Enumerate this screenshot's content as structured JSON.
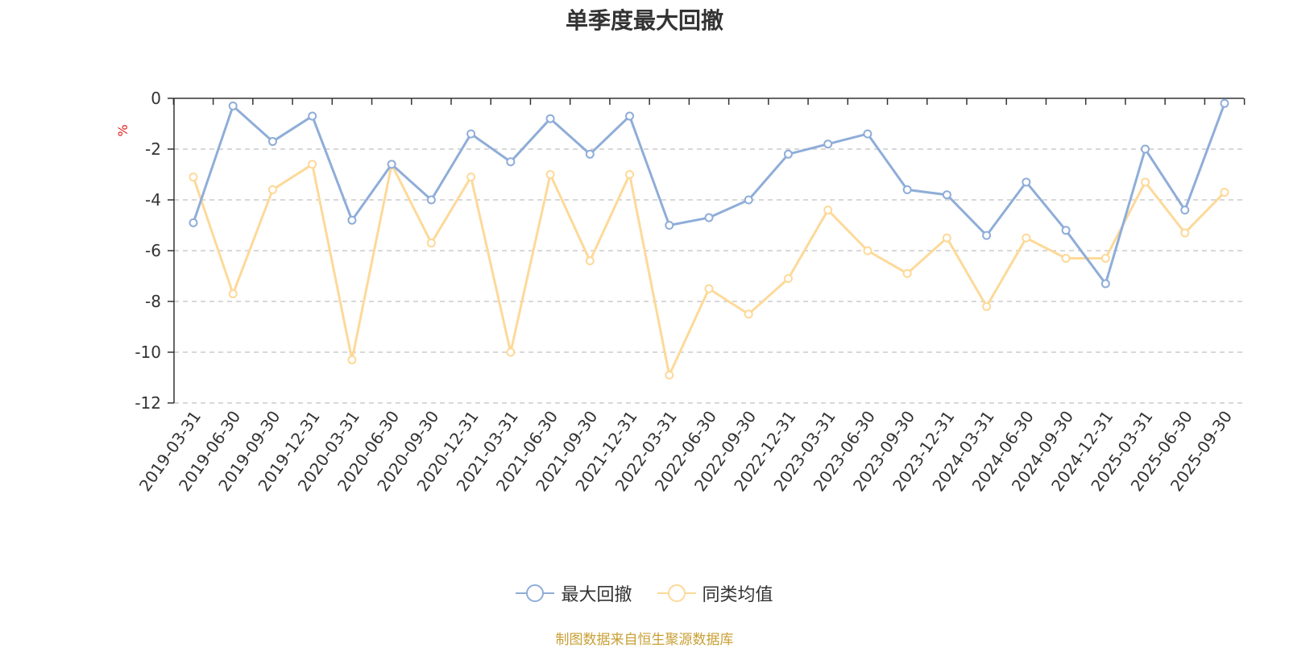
{
  "chart_data": {
    "type": "line",
    "title": "单季度最大回撤",
    "ylabel": "%",
    "xlabel": "",
    "ylim": [
      -12,
      0
    ],
    "yticks": [
      0,
      -2,
      -4,
      -6,
      -8,
      -10,
      -12
    ],
    "grid": true,
    "legend_position": "bottom",
    "categories": [
      "2019-03-31",
      "2019-06-30",
      "2019-09-30",
      "2019-12-31",
      "2020-03-31",
      "2020-06-30",
      "2020-09-30",
      "2020-12-31",
      "2021-03-31",
      "2021-06-30",
      "2021-09-30",
      "2021-12-31",
      "2022-03-31",
      "2022-06-30",
      "2022-09-30",
      "2022-12-31",
      "2023-03-31",
      "2023-06-30",
      "2023-09-30",
      "2023-12-31",
      "2024-03-31",
      "2024-06-30",
      "2024-09-30",
      "2024-12-31",
      "2025-03-31",
      "2025-06-30",
      "2025-09-30"
    ],
    "series": [
      {
        "name": "最大回撤",
        "color": "#8fadd8",
        "values": [
          -4.9,
          -0.3,
          -1.7,
          -0.7,
          -4.8,
          -2.6,
          -4.0,
          -1.4,
          -2.5,
          -0.8,
          -2.2,
          -0.7,
          -5.0,
          -4.7,
          -4.0,
          -2.2,
          -1.8,
          -1.4,
          -3.6,
          -3.8,
          -5.4,
          -3.3,
          -5.2,
          -7.3,
          -2.0,
          -4.4,
          -0.2
        ]
      },
      {
        "name": "同类均值",
        "color": "#fdd999",
        "values": [
          -3.1,
          -7.7,
          -3.6,
          -2.6,
          -10.3,
          -2.6,
          -5.7,
          -3.1,
          -10.0,
          -3.0,
          -6.4,
          -3.0,
          -10.9,
          -7.5,
          -8.5,
          -7.1,
          -4.4,
          -6.0,
          -6.9,
          -5.5,
          -8.2,
          -5.5,
          -6.3,
          -6.3,
          -3.3,
          -5.3,
          -3.7
        ]
      }
    ]
  },
  "source_note": "制图数据来自恒生聚源数据库",
  "colors": {
    "axis": "#333333",
    "grid": "#cccccc",
    "tick_text": "#333333",
    "ylabel": "#e02020",
    "source_note": "#c8a035"
  }
}
